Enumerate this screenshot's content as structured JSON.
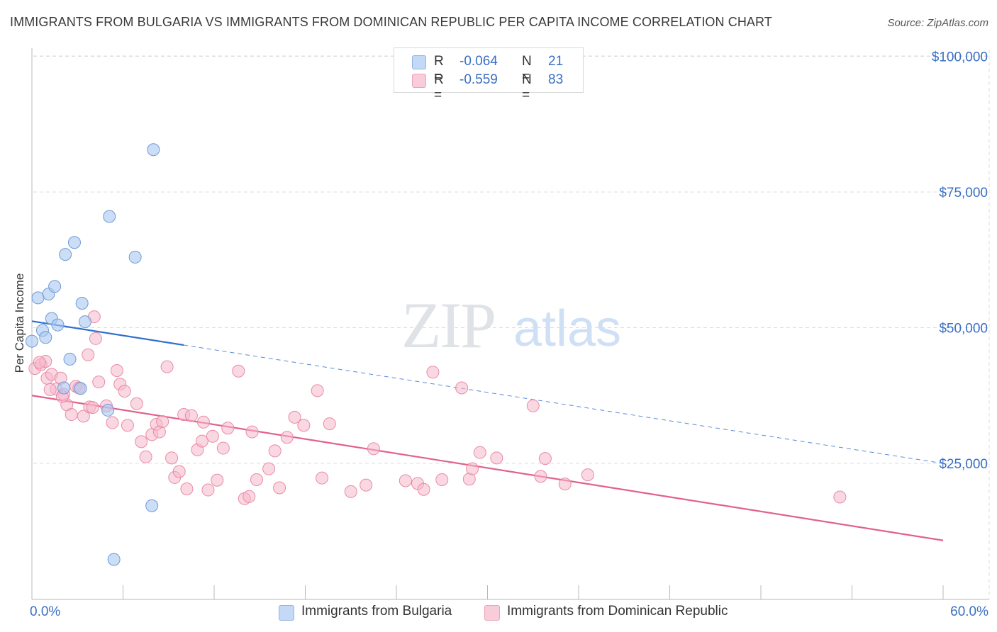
{
  "title": "IMMIGRANTS FROM BULGARIA VS IMMIGRANTS FROM DOMINICAN REPUBLIC PER CAPITA INCOME CORRELATION CHART",
  "source": "Source: ZipAtlas.com",
  "watermark": {
    "zip": "ZIP",
    "atlas": "atlas"
  },
  "legend": {
    "rows": [
      {
        "r_label": "R =",
        "r_value": "-0.064",
        "n_label": "N =",
        "n_value": "21",
        "color": "#a9c8f0"
      },
      {
        "r_label": "R =",
        "r_value": "-0.559",
        "n_label": "N =",
        "n_value": "83",
        "color": "#f6b8cb"
      }
    ]
  },
  "bottom_legend": [
    {
      "label": "Immigrants from Bulgaria",
      "color": "#a9c8f0"
    },
    {
      "label": "Immigrants from Dominican Republic",
      "color": "#f6b8cb"
    }
  ],
  "colors": {
    "blue_fill": "#a9c8f0",
    "blue_stroke": "#6e9bd8",
    "blue_line": "#2f6fd0",
    "pink_fill": "#f6b8cb",
    "pink_stroke": "#e98aa8",
    "pink_line": "#e2618c",
    "axis_text": "#3a6fc4",
    "grid": "#dcdcdc"
  },
  "chart_data": {
    "type": "scatter",
    "title": "IMMIGRANTS FROM BULGARIA VS IMMIGRANTS FROM DOMINICAN REPUBLIC PER CAPITA INCOME CORRELATION CHART",
    "xlabel": "",
    "ylabel": "Per Capita Income",
    "xlim": [
      0,
      60
    ],
    "ylim": [
      0,
      105000
    ],
    "x_tick_labels": [
      "0.0%",
      "60.0%"
    ],
    "y_ticks": [
      25000,
      50000,
      75000,
      100000
    ],
    "y_tick_labels": [
      "$25,000",
      "$50,000",
      "$75,000",
      "$100,000"
    ],
    "grid": true,
    "legend_position": "top-center",
    "series": [
      {
        "name": "Immigrants from Bulgaria",
        "points": [
          [
            0.0,
            47500
          ],
          [
            0.4,
            55500
          ],
          [
            0.7,
            49500
          ],
          [
            0.9,
            48200
          ],
          [
            1.1,
            56200
          ],
          [
            1.3,
            51700
          ],
          [
            1.5,
            57600
          ],
          [
            1.7,
            50500
          ],
          [
            2.2,
            63500
          ],
          [
            2.5,
            44200
          ],
          [
            2.8,
            65700
          ],
          [
            3.2,
            38800
          ],
          [
            3.3,
            54500
          ],
          [
            3.5,
            51100
          ],
          [
            5.0,
            34800
          ],
          [
            5.1,
            70500
          ],
          [
            6.8,
            63000
          ],
          [
            8.0,
            82800
          ],
          [
            7.9,
            17200
          ],
          [
            5.4,
            7300
          ],
          [
            2.1,
            38900
          ]
        ],
        "trend": {
          "x": [
            0,
            10.0
          ],
          "y": [
            51200,
            46800
          ],
          "dashed_extension": {
            "x": [
              10.0,
              60
            ],
            "y": [
              46800,
              25000
            ]
          }
        }
      },
      {
        "name": "Immigrants from Dominican Republic",
        "points": [
          [
            0.2,
            42500
          ],
          [
            0.6,
            43200
          ],
          [
            0.9,
            43800
          ],
          [
            1.0,
            40700
          ],
          [
            1.3,
            41400
          ],
          [
            1.6,
            38700
          ],
          [
            1.9,
            40700
          ],
          [
            2.1,
            37700
          ],
          [
            2.3,
            35800
          ],
          [
            2.6,
            34000
          ],
          [
            2.9,
            39200
          ],
          [
            3.1,
            38900
          ],
          [
            3.4,
            33700
          ],
          [
            3.7,
            45000
          ],
          [
            3.8,
            35400
          ],
          [
            4.0,
            35300
          ],
          [
            4.1,
            52000
          ],
          [
            4.2,
            48000
          ],
          [
            4.4,
            40000
          ],
          [
            4.9,
            35600
          ],
          [
            5.3,
            32500
          ],
          [
            5.6,
            42100
          ],
          [
            5.8,
            39600
          ],
          [
            6.1,
            38300
          ],
          [
            6.3,
            32000
          ],
          [
            6.9,
            36000
          ],
          [
            7.2,
            29000
          ],
          [
            7.5,
            26200
          ],
          [
            7.9,
            30300
          ],
          [
            8.2,
            32200
          ],
          [
            8.4,
            30800
          ],
          [
            8.6,
            32700
          ],
          [
            8.9,
            42800
          ],
          [
            9.2,
            26000
          ],
          [
            9.4,
            22400
          ],
          [
            9.7,
            23500
          ],
          [
            10.0,
            34000
          ],
          [
            10.2,
            20300
          ],
          [
            10.5,
            33800
          ],
          [
            10.9,
            27500
          ],
          [
            11.2,
            29100
          ],
          [
            11.3,
            32600
          ],
          [
            11.6,
            20100
          ],
          [
            11.9,
            30000
          ],
          [
            12.2,
            21900
          ],
          [
            12.6,
            27800
          ],
          [
            12.9,
            31500
          ],
          [
            13.6,
            42000
          ],
          [
            14.0,
            18500
          ],
          [
            14.3,
            18900
          ],
          [
            14.5,
            30800
          ],
          [
            14.8,
            22000
          ],
          [
            15.6,
            24000
          ],
          [
            16.0,
            27300
          ],
          [
            16.3,
            20500
          ],
          [
            16.8,
            29800
          ],
          [
            17.3,
            33500
          ],
          [
            17.9,
            32000
          ],
          [
            18.8,
            38400
          ],
          [
            19.1,
            22300
          ],
          [
            19.6,
            32300
          ],
          [
            21.0,
            19800
          ],
          [
            22.0,
            21000
          ],
          [
            22.5,
            27700
          ],
          [
            24.6,
            21800
          ],
          [
            25.4,
            21300
          ],
          [
            25.8,
            20200
          ],
          [
            26.4,
            41800
          ],
          [
            27.0,
            22000
          ],
          [
            28.3,
            38900
          ],
          [
            28.8,
            22100
          ],
          [
            29.0,
            24000
          ],
          [
            29.5,
            27000
          ],
          [
            30.6,
            26000
          ],
          [
            33.0,
            35600
          ],
          [
            33.5,
            22600
          ],
          [
            33.8,
            25900
          ],
          [
            35.1,
            21200
          ],
          [
            36.6,
            22900
          ],
          [
            53.2,
            18800
          ],
          [
            1.2,
            38600
          ],
          [
            0.5,
            43600
          ],
          [
            2.0,
            37300
          ]
        ],
        "trend": {
          "x": [
            0,
            60
          ],
          "y": [
            37500,
            10800
          ]
        }
      }
    ]
  }
}
